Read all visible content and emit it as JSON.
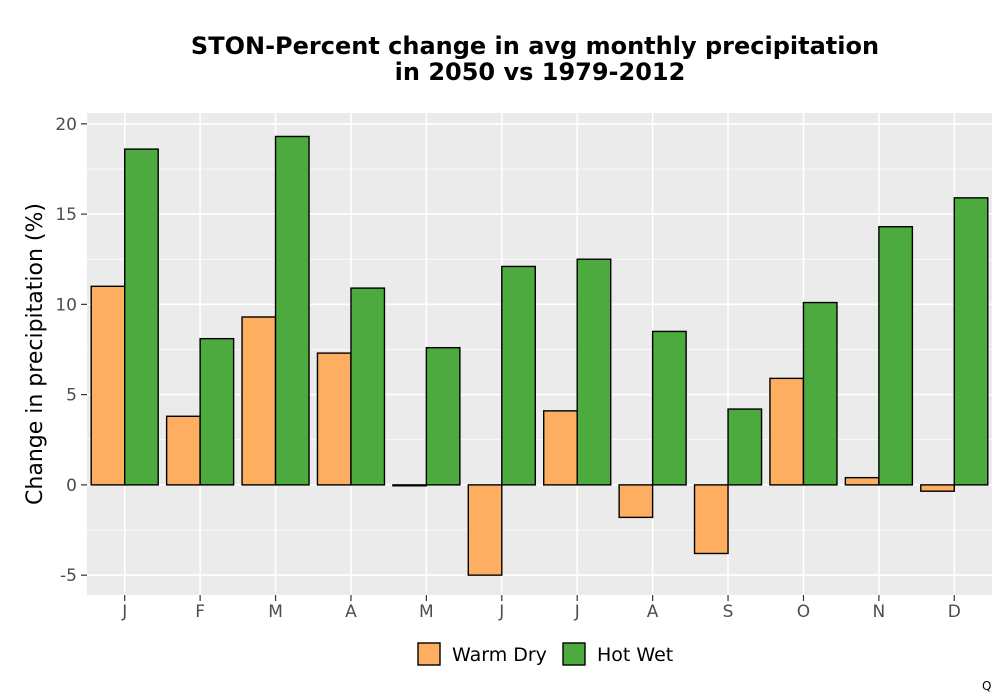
{
  "chart_data": {
    "type": "bar",
    "title": [
      "STON-Percent change in avg monthly precipitation",
      "in 2050 vs 1979-2012"
    ],
    "xlabel": "",
    "ylabel": "Change in precipitation (%)",
    "categories": [
      "J",
      "F",
      "M",
      "A",
      "M",
      "J",
      "J",
      "A",
      "S",
      "O",
      "N",
      "D"
    ],
    "series": [
      {
        "name": "Warm Dry",
        "color": "#fdae61",
        "values": [
          11.0,
          3.8,
          9.3,
          7.3,
          -0.05,
          -5.0,
          4.1,
          -1.8,
          -3.8,
          5.9,
          0.4,
          -0.35
        ]
      },
      {
        "name": "Hot Wet",
        "color": "#4daa3f",
        "values": [
          18.6,
          8.1,
          19.3,
          10.9,
          7.6,
          12.1,
          12.5,
          8.5,
          4.2,
          10.1,
          14.3,
          15.9
        ]
      }
    ],
    "ylim": [
      -6.1,
      20.6
    ],
    "yticks": [
      -5,
      0,
      5,
      10,
      15,
      20
    ],
    "grid": true,
    "legend_position": "bottom",
    "panel_background": "#ebebeb",
    "grid_color": "#ffffff",
    "bar_outline": "#000000"
  },
  "corner_mark": "Q"
}
